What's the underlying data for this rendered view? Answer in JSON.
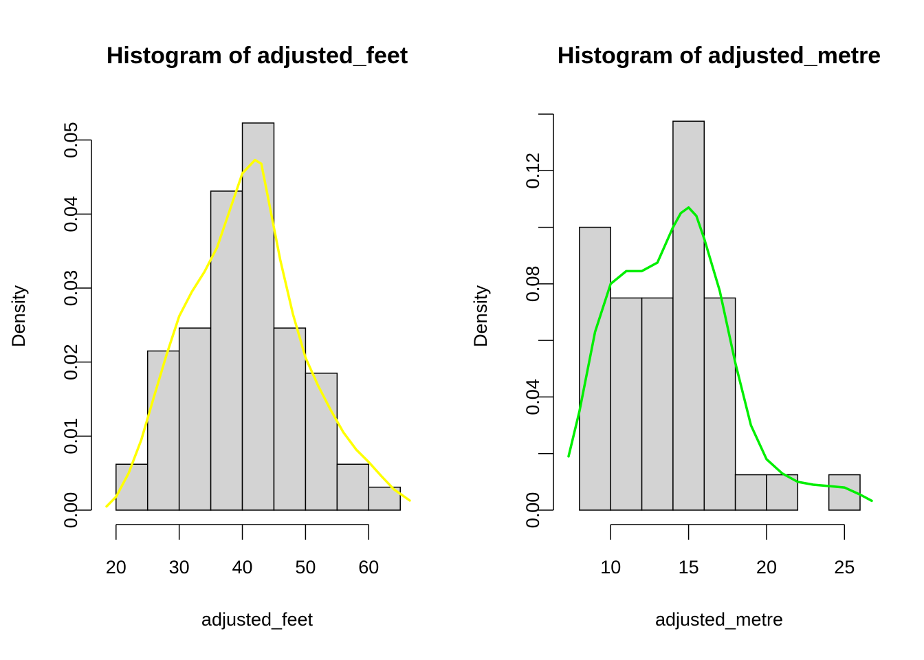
{
  "chart_data": [
    {
      "type": "bar",
      "title": "Histogram of adjusted_feet",
      "xlabel": "adjusted_feet",
      "ylabel": "Density",
      "bin_edges": [
        20,
        25,
        30,
        35,
        40,
        45,
        50,
        55,
        60,
        65
      ],
      "values": [
        0.0062,
        0.0215,
        0.0246,
        0.0431,
        0.0523,
        0.0246,
        0.0185,
        0.0062,
        0.0031
      ],
      "xlim": [
        18.5,
        66.5
      ],
      "ylim": [
        0,
        0.0535
      ],
      "x_ticks": [
        20,
        30,
        40,
        50,
        60
      ],
      "x_tick_labels": [
        "20",
        "30",
        "40",
        "50",
        "60"
      ],
      "y_ticks": [
        0,
        0.01,
        0.02,
        0.03,
        0.04,
        0.05
      ],
      "y_tick_labels": [
        "0.00",
        "0.01",
        "0.02",
        "0.03",
        "0.04",
        "0.05"
      ],
      "density_color": "#ffff00",
      "density_curve": {
        "x": [
          18.5,
          20,
          22,
          24,
          26,
          28,
          30,
          32,
          34,
          36,
          38,
          40,
          42,
          43,
          44,
          46,
          48,
          50,
          52,
          54,
          56,
          58,
          60,
          62,
          64,
          66.5
        ],
        "y": [
          0.0005,
          0.0018,
          0.005,
          0.0095,
          0.0153,
          0.021,
          0.0262,
          0.0295,
          0.0322,
          0.0355,
          0.0405,
          0.0455,
          0.0473,
          0.0468,
          0.0425,
          0.0338,
          0.0265,
          0.0206,
          0.0168,
          0.0135,
          0.0105,
          0.0082,
          0.0065,
          0.0046,
          0.0028,
          0.0013
        ]
      }
    },
    {
      "type": "bar",
      "title": "Histogram of adjusted_metre",
      "xlabel": "adjusted_metre",
      "ylabel": "Density",
      "bin_edges": [
        8,
        10,
        12,
        14,
        16,
        18,
        20,
        22,
        24,
        26
      ],
      "values": [
        0.1,
        0.075,
        0.075,
        0.1375,
        0.075,
        0.0125,
        0.0125,
        0,
        0.0125
      ],
      "xlim": [
        7.3,
        26.75
      ],
      "ylim": [
        0,
        0.14
      ],
      "x_ticks": [
        10,
        15,
        20,
        25
      ],
      "x_tick_labels": [
        "10",
        "15",
        "20",
        "25"
      ],
      "y_ticks": [
        0,
        0.04,
        0.08,
        0.12
      ],
      "y_tick_labels": [
        "0.00",
        "0.04",
        "0.08",
        "0.12"
      ],
      "y_minor_ticks": [
        0.02,
        0.06,
        0.1,
        0.14
      ],
      "density_color": "#00ee00",
      "density_curve": {
        "x": [
          7.3,
          8,
          9,
          10,
          11,
          12,
          13,
          14,
          14.5,
          15,
          15.5,
          16,
          17,
          18,
          19,
          20,
          21,
          22,
          23,
          24,
          25,
          26,
          26.75
        ],
        "y": [
          0.019,
          0.035,
          0.063,
          0.08,
          0.0845,
          0.0845,
          0.0875,
          0.1,
          0.105,
          0.107,
          0.104,
          0.096,
          0.0775,
          0.052,
          0.03,
          0.018,
          0.013,
          0.01,
          0.009,
          0.0085,
          0.008,
          0.0055,
          0.0033
        ]
      }
    }
  ]
}
